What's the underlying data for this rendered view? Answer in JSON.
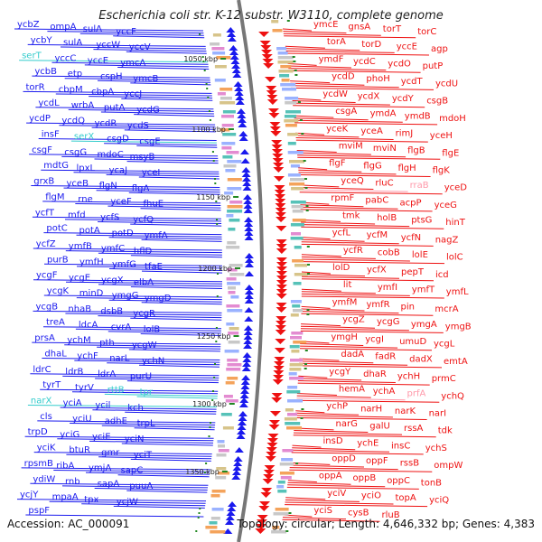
{
  "title": "Escherichia coli str. K-12 substr. W3110, complete genome",
  "footer": {
    "accession": "Accession: AC_000091",
    "topology": "Topology: circular; Length: 4,646,332 bp; Genes: 4,383"
  },
  "colors": {
    "left_strand": "#1a1aee",
    "left_highlight": "#33cccc",
    "right_strand": "#ee1111",
    "right_highlight": "#ff99aa",
    "backbone": "#777777",
    "kbp_mark": "#228822"
  },
  "kbp_marks": [
    "1050 kbp",
    "1100 kbp",
    "1150 kbp",
    "1200 kbp",
    "1250 kbp",
    "1300 kbp",
    "1350 kbp"
  ],
  "left_genes": [
    "ycbZ",
    "ompA",
    "sulA",
    "yccF",
    "ycbY",
    "sulA",
    "yccW",
    "yccV",
    "serT",
    "yccC",
    "yccE",
    "ymcA",
    "ycbB",
    "etp",
    "cspH",
    "ymcB",
    "torR",
    "cbpM",
    "cbpA",
    "yccJ",
    "ycdL",
    "wrbA",
    "putA",
    "ycdG",
    "ycdP",
    "ycdQ",
    "ycdR",
    "ycdS",
    "insF",
    "serX",
    "csgD",
    "csgE",
    "csgF",
    "csgG",
    "mdoC",
    "msyB",
    "mdtG",
    "lpxL",
    "ycaJ",
    "yceI",
    "grxB",
    "yceB",
    "flgN",
    "flgA",
    "flgM",
    "rne",
    "yceF",
    "fhuE",
    "ycfT",
    "mfd",
    "ycfS",
    "ycfQ",
    "potC",
    "potA",
    "potD",
    "ymfA",
    "ycfZ",
    "ymfB",
    "ymfC",
    "hflD",
    "purB",
    "ymfH",
    "ymfG",
    "tfaE",
    "ycgF",
    "ycgE",
    "ycgX",
    "elbA",
    "ycgK",
    "minD",
    "ymgG",
    "ymgD",
    "ycgB",
    "nhaB",
    "dsbB",
    "ycgR",
    "treA",
    "ldcA",
    "cvrA",
    "lolB",
    "prsA",
    "ychM",
    "pth",
    "ycgW",
    "dhaL",
    "ychF",
    "narL",
    "ychN",
    "ldrC",
    "ldrB",
    "ldrA",
    "purU",
    "tyrT",
    "tyrV",
    "rttB",
    "tpr",
    "narX",
    "yciA",
    "ycil",
    "kch",
    "cls",
    "yciU",
    "adhE",
    "trpL",
    "trpD",
    "yciG",
    "yciE",
    "yciN",
    "yciK",
    "btuR",
    "gmr",
    "yciT",
    "rpsmB",
    "ribA",
    "ymjA",
    "sapC",
    "ydiW",
    "rnb",
    "sapA",
    "puuA",
    "ycjY",
    "mpaA",
    "tpx",
    "ycjW",
    "pspF"
  ],
  "right_genes": [
    "ymcE",
    "gnsA",
    "torT",
    "torC",
    "torA",
    "torD",
    "yccE",
    "agp",
    "ymdF",
    "ycdC",
    "ycdO",
    "putP",
    "ycdD",
    "phoH",
    "ycdT",
    "ycdU",
    "ycdW",
    "ycdX",
    "ycdY",
    "csgB",
    "csgA",
    "ymdA",
    "ymdB",
    "mdoH",
    "yceK",
    "yceA",
    "rimJ",
    "yceH",
    "mviM",
    "mviN",
    "flgB",
    "flgE",
    "flgF",
    "flgG",
    "flgH",
    "flgK",
    "yceQ",
    "rluC",
    "rraB",
    "yceD",
    "rpmF",
    "pabC",
    "acpP",
    "yceG",
    "tmk",
    "holB",
    "ptsG",
    "hinT",
    "ycfL",
    "ycfM",
    "ycfN",
    "nagZ",
    "ycfR",
    "cobB",
    "lolE",
    "lolC",
    "lolD",
    "ycfX",
    "pepT",
    "icd",
    "lit",
    "ymfI",
    "ymfT",
    "ymfL",
    "ymfM",
    "ymfR",
    "pin",
    "mcrA",
    "ycgZ",
    "ycgG",
    "ymgA",
    "ymgB",
    "ymgH",
    "ycgI",
    "umuD",
    "ycgL",
    "dadA",
    "fadR",
    "dadX",
    "emtA",
    "ycgY",
    "dhaR",
    "ychH",
    "prmC",
    "hemA",
    "ychA",
    "prfA",
    "ychQ",
    "ychP",
    "narH",
    "narK",
    "narI",
    "narG",
    "galU",
    "rssA",
    "tdk",
    "insD",
    "ychE",
    "insC",
    "ychS",
    "oppD",
    "oppF",
    "rssB",
    "ompW",
    "oppA",
    "oppB",
    "oppC",
    "tonB",
    "yciV",
    "yciO",
    "topA",
    "yciQ",
    "yciS",
    "cysB",
    "rluB"
  ]
}
